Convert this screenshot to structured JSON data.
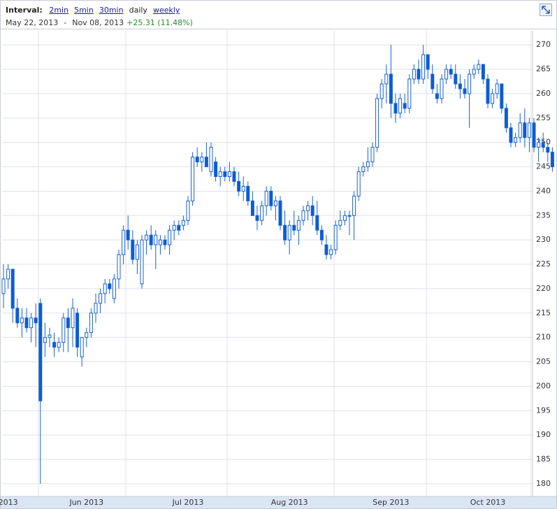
{
  "header": {
    "interval_label": "Interval:",
    "intervals": [
      {
        "label": "2min",
        "link": true
      },
      {
        "label": "5min",
        "link": true
      },
      {
        "label": "30min",
        "link": true
      },
      {
        "label": "daily",
        "link": false
      },
      {
        "label": "weekly",
        "link": true
      }
    ],
    "start": "May 22, 2013",
    "separator": "-",
    "end": "Nov 08, 2013",
    "change": "+25.31 (11.48%)"
  },
  "chart_data": {
    "type": "candlestick",
    "up_color": "#ffffff",
    "down_color": "#0a5cd6",
    "stroke_color": "#1560d0",
    "grid": true,
    "ylim": [
      177.4,
      272.9
    ],
    "yticks": [
      180,
      185,
      190,
      195,
      200,
      205,
      210,
      215,
      220,
      225,
      230,
      235,
      240,
      245,
      250,
      255,
      260,
      265,
      270
    ],
    "categories": [
      null,
      "2013",
      null,
      null,
      null,
      null,
      null,
      null,
      null,
      null,
      null,
      null,
      null,
      null,
      null,
      null,
      null,
      null,
      "Jun 2013",
      null,
      null,
      null,
      null,
      null,
      null,
      null,
      null,
      null,
      null,
      null,
      null,
      null,
      null,
      null,
      null,
      null,
      null,
      null,
      null,
      null,
      "Jul 2013",
      null,
      null,
      null,
      null,
      null,
      null,
      null,
      null,
      null,
      null,
      null,
      null,
      null,
      null,
      null,
      null,
      null,
      null,
      null,
      null,
      null,
      "Aug 2013",
      null,
      null,
      null,
      null,
      null,
      null,
      null,
      null,
      null,
      null,
      null,
      null,
      null,
      null,
      null,
      null,
      null,
      null,
      null,
      null,
      null,
      "Sep 2013",
      null,
      null,
      null,
      null,
      null,
      null,
      null,
      null,
      null,
      null,
      null,
      null,
      null,
      null,
      null,
      null,
      null,
      null,
      null,
      null,
      "Oct 2013",
      null,
      null,
      null,
      null,
      null,
      null,
      null,
      null,
      null,
      null,
      null,
      null,
      null,
      null
    ],
    "open": [
      219,
      222,
      224,
      216,
      213,
      214,
      212,
      214,
      217,
      209,
      210,
      209,
      208,
      209,
      214,
      212,
      215,
      206,
      210,
      211,
      215,
      217,
      219,
      221,
      218,
      222,
      227,
      232,
      230,
      226,
      221,
      230,
      231,
      229,
      229,
      230,
      229,
      232,
      233,
      233,
      234,
      238,
      247,
      246,
      247,
      244,
      246,
      243,
      244,
      243,
      244,
      242,
      240,
      241,
      238,
      235,
      234,
      237,
      240,
      237,
      238,
      233,
      230,
      233,
      232,
      234,
      236,
      237,
      235,
      232,
      229,
      227,
      228,
      233,
      234,
      235,
      235,
      239,
      244,
      245,
      246,
      249,
      259,
      262,
      264,
      258,
      256,
      258,
      257,
      263,
      265,
      263,
      268,
      264,
      260,
      259,
      263,
      265,
      264,
      262,
      261,
      260,
      264,
      265,
      266,
      263,
      258,
      260,
      262,
      257,
      253,
      250,
      251,
      254,
      251,
      254,
      249,
      250,
      249,
      248
    ],
    "high": [
      225,
      225,
      224,
      218,
      216,
      216,
      215,
      217,
      218,
      213,
      212,
      211,
      210,
      215,
      216,
      218,
      216,
      210,
      212,
      216,
      219,
      220,
      222,
      222,
      223,
      228,
      233,
      235,
      232,
      230,
      231,
      232,
      233,
      232,
      231,
      231,
      233,
      234,
      234,
      235,
      239,
      248,
      249,
      248,
      250,
      250,
      247,
      245,
      245,
      246,
      245,
      244,
      243,
      242,
      240,
      237,
      238,
      241,
      241,
      239,
      239,
      236,
      234,
      236,
      235,
      237,
      238,
      239,
      238,
      233,
      231,
      229,
      234,
      236,
      236,
      236,
      240,
      245,
      246,
      249,
      250,
      260,
      263,
      266,
      270,
      260,
      260,
      260,
      264,
      266,
      267,
      270,
      268,
      266,
      262,
      264,
      266,
      266,
      266,
      264,
      263,
      265,
      266,
      267,
      266,
      264,
      261,
      263,
      262,
      258,
      254,
      252,
      256,
      257,
      255,
      255,
      251,
      252,
      250,
      249
    ],
    "low": [
      216,
      220,
      213,
      212,
      210,
      211,
      209,
      208,
      180,
      206,
      208,
      206,
      207,
      207,
      207,
      208,
      206,
      204,
      208,
      210,
      213,
      215,
      217,
      219,
      217,
      220,
      225,
      228,
      225,
      223,
      220,
      227,
      228,
      224,
      227,
      228,
      227,
      230,
      231,
      232,
      233,
      237,
      245,
      244,
      245,
      243,
      242,
      241,
      242,
      242,
      241,
      239,
      238,
      237,
      235,
      232,
      233,
      235,
      236,
      234,
      232,
      229,
      227,
      231,
      229,
      233,
      234,
      233,
      231,
      229,
      226,
      226,
      227,
      232,
      233,
      231,
      230,
      238,
      243,
      244,
      245,
      248,
      257,
      258,
      255,
      254,
      255,
      256,
      256,
      262,
      262,
      262,
      263,
      260,
      258,
      258,
      262,
      263,
      261,
      259,
      259,
      253,
      263,
      264,
      262,
      257,
      257,
      259,
      256,
      252,
      249,
      249,
      250,
      249,
      248,
      248,
      246,
      248,
      246,
      244
    ],
    "close": [
      222,
      224,
      216,
      213,
      214,
      212,
      214,
      213,
      197,
      210,
      210.5,
      208,
      209,
      214,
      212,
      216,
      208,
      210,
      211,
      215,
      217,
      219,
      221,
      220,
      222,
      227,
      232,
      230,
      226,
      229,
      230,
      231,
      229,
      231,
      230,
      229,
      232,
      233,
      232,
      234,
      238,
      247,
      246,
      247,
      245,
      249,
      243,
      244,
      243,
      244,
      242,
      240,
      241,
      238,
      235,
      234,
      237,
      240,
      237,
      238,
      233,
      230,
      233,
      232,
      234,
      236,
      237,
      235,
      232,
      230,
      227,
      228,
      233,
      234,
      235,
      235,
      239,
      244,
      245,
      246,
      249,
      259,
      262,
      264,
      258,
      256,
      259,
      257,
      263,
      265,
      263,
      268,
      265,
      261,
      259,
      263,
      265,
      264,
      262,
      261,
      260,
      264,
      265,
      266,
      263,
      258,
      260,
      262,
      257,
      253,
      250,
      251,
      254,
      251,
      254,
      249,
      250,
      249,
      248,
      245
    ]
  }
}
